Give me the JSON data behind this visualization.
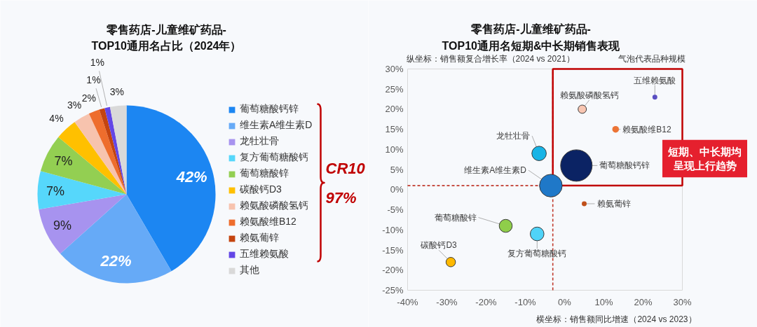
{
  "chart_data": [
    {
      "type": "pie",
      "title": "零售药店-儿童维矿药品-\nTOP10通用名占比（2024年）",
      "categories": [
        "葡萄糖酸钙锌",
        "维生素A维生素D",
        "龙牡壮骨",
        "复方葡萄糖酸钙",
        "葡萄糖酸锌",
        "碳酸钙D3",
        "赖氨酸磷酸氢钙",
        "赖氨酸维B12",
        "赖氨葡锌",
        "五维赖氨酸",
        "其他"
      ],
      "values": [
        42,
        22,
        9,
        7,
        7,
        4,
        3,
        2,
        1,
        1,
        3
      ],
      "colors": [
        "#1c86f2",
        "#66aaf7",
        "#a793ef",
        "#56d7fb",
        "#93cf52",
        "#ffc000",
        "#f7c3ae",
        "#ee6d2d",
        "#c4440f",
        "#6346e6",
        "#d9d9d9"
      ],
      "value_labels": [
        "42%",
        "22%",
        "9%",
        "7%",
        "7%",
        "4%",
        "3%",
        "2%",
        "1%",
        "1%",
        "3%"
      ],
      "legend": "right",
      "annotations": [
        "CR10",
        "97%"
      ]
    },
    {
      "type": "bubble",
      "title": "零售药店-儿童维矿药品-\nTOP10通用名短期&中长期销售表现",
      "xlabel": "横坐标：销售额同比增速（2024 vs 2023）",
      "ylabel": "纵坐标：销售额复合增长率（2024 vs 2021）",
      "annotations": [
        "气泡代表品种规模",
        "短期、中长期均呈现上行趋势"
      ],
      "xlim": [
        -40,
        30
      ],
      "ylim": [
        -25,
        30
      ],
      "xticks": [
        {
          "value": -40,
          "label": "-40%"
        },
        {
          "value": -30,
          "label": "-30%"
        },
        {
          "value": -20,
          "label": "-20%"
        },
        {
          "value": -10,
          "label": "-10%"
        },
        {
          "value": 0,
          "label": "0%"
        },
        {
          "value": 10,
          "label": "10%"
        },
        {
          "value": 20,
          "label": "20%"
        },
        {
          "value": 30,
          "label": "30%"
        }
      ],
      "yticks": [
        {
          "value": -25,
          "label": "-25%"
        },
        {
          "value": -20,
          "label": "-20%"
        },
        {
          "value": -15,
          "label": "-15%"
        },
        {
          "value": -10,
          "label": "-10%"
        },
        {
          "value": -5,
          "label": "-5%"
        },
        {
          "value": 0,
          "label": "0%"
        },
        {
          "value": 5,
          "label": "5%"
        },
        {
          "value": 10,
          "label": "10%"
        },
        {
          "value": 15,
          "label": "15%"
        },
        {
          "value": 20,
          "label": "20%"
        },
        {
          "value": 25,
          "label": "25%"
        },
        {
          "value": 30,
          "label": "30%"
        }
      ],
      "ref_lines": [
        {
          "axis": "x",
          "value": -3,
          "color": "#c0392b",
          "line_style": "dashed"
        },
        {
          "axis": "y",
          "value": 1,
          "color": "#c0392b",
          "line_style": "dashed"
        }
      ],
      "series": [
        {
          "name": "葡萄糖酸钙锌",
          "color": "#0b2364",
          "x": [
            3
          ],
          "values": [
            6
          ],
          "sizes": [
            1
          ]
        },
        {
          "name": "维生素A维生素D",
          "color": "#1f78c8",
          "x": [
            -3.5
          ],
          "values": [
            1
          ],
          "sizes": [
            0.52
          ]
        },
        {
          "name": "龙牡壮骨",
          "color": "#18b4e6",
          "x": [
            -6.5
          ],
          "values": [
            9
          ],
          "sizes": [
            0.21
          ]
        },
        {
          "name": "复方葡萄糖酸钙",
          "color": "#4fd3f8",
          "x": [
            -7
          ],
          "values": [
            -11
          ],
          "sizes": [
            0.19
          ]
        },
        {
          "name": "葡萄糖酸锌",
          "color": "#8fce4a",
          "x": [
            -15
          ],
          "values": [
            -9
          ],
          "sizes": [
            0.17
          ]
        },
        {
          "name": "碳酸钙D3",
          "color": "#ffb900",
          "x": [
            -29
          ],
          "values": [
            -18
          ],
          "sizes": [
            0.09
          ]
        },
        {
          "name": "赖氨酸磷酸氢钙",
          "color": "#f8c6b2",
          "x": [
            4.5
          ],
          "values": [
            20
          ],
          "sizes": [
            0.07
          ]
        },
        {
          "name": "赖氨酸维B12",
          "color": "#ec7435",
          "x": [
            13
          ],
          "values": [
            15
          ],
          "sizes": [
            0.045
          ]
        },
        {
          "name": "赖氨葡锌",
          "color": "#c0501a",
          "x": [
            5
          ],
          "values": [
            -3.5
          ],
          "sizes": [
            0.024
          ]
        },
        {
          "name": "五维赖氨酸",
          "color": "#5a4fc2",
          "x": [
            23
          ],
          "values": [
            23
          ],
          "sizes": [
            0.024
          ]
        }
      ]
    }
  ]
}
